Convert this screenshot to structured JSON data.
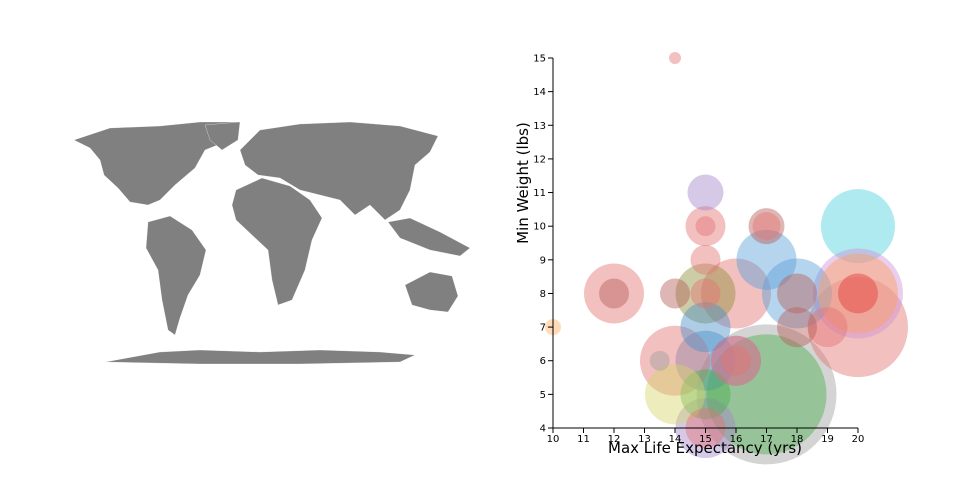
{
  "chart_data": {
    "type": "scatter",
    "x_label": "Max Life Expectancy (yrs)",
    "y_label": "Min Weight (lbs)",
    "x": [
      17,
      17,
      20,
      20,
      20,
      16,
      18,
      12,
      15,
      15,
      14,
      20,
      17,
      17,
      15,
      15,
      19,
      18,
      18,
      16,
      15,
      15,
      16,
      15,
      14,
      15,
      15,
      13.5,
      20,
      16,
      15,
      12,
      14,
      15,
      17,
      10,
      14
    ],
    "y": [
      5,
      5,
      7,
      10,
      8,
      8,
      8,
      8,
      8,
      6,
      6,
      8,
      9,
      10,
      4,
      10,
      7,
      7,
      8,
      6,
      7,
      5,
      6,
      11,
      5,
      9,
      4,
      6,
      8,
      6,
      8,
      8,
      8,
      10,
      10,
      7,
      15
    ],
    "sizes": [
      70,
      60,
      50,
      37,
      45,
      35,
      35,
      30,
      30,
      30,
      35,
      40,
      30,
      18,
      30,
      20,
      20,
      20,
      20,
      25,
      25,
      25,
      25,
      18,
      30,
      15,
      20,
      10,
      20,
      15,
      15,
      15,
      15,
      10,
      14,
      8,
      6
    ],
    "colors": [
      "#a0a0a0",
      "#4caf50",
      "#e57373",
      "#4dd0e1",
      "#ce93d8",
      "#e57373",
      "#5c9fd6",
      "#e57373",
      "#8d8d3a",
      "#4a90c8",
      "#e57373",
      "#ff9f60",
      "#5c9fd6",
      "#b5605a",
      "#a584c9",
      "#e57373",
      "#e57373",
      "#b5605a",
      "#b5605a",
      "#a584c9",
      "#4a90c8",
      "#4caf50",
      "#e57373",
      "#a584c9",
      "#d4d46a",
      "#e57373",
      "#e57373",
      "#a0a0a0",
      "#e53935",
      "#e57373",
      "#e57373",
      "#b5605a",
      "#b5605a",
      "#e57373",
      "#e57373",
      "#ffb060",
      "#e57373"
    ],
    "opacity": 0.45,
    "xlim": [
      10,
      20
    ],
    "xticks": [
      10,
      11,
      12,
      13,
      14,
      15,
      16,
      17,
      18,
      19,
      20
    ],
    "ylim": [
      4,
      15
    ],
    "yticks": [
      4,
      5,
      6,
      7,
      8,
      9,
      10,
      11,
      12,
      13,
      14,
      15
    ]
  }
}
